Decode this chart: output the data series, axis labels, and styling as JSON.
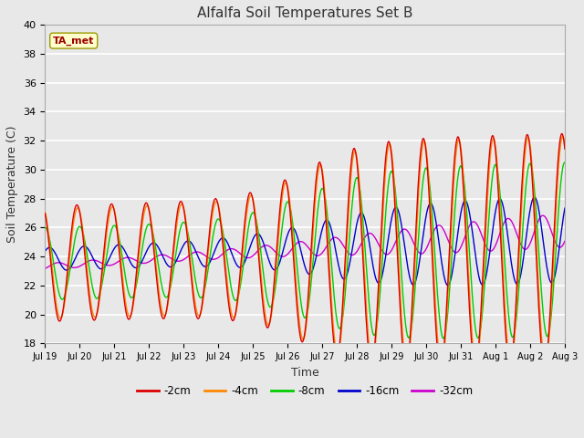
{
  "title": "Alfalfa Soil Temperatures Set B",
  "xlabel": "Time",
  "ylabel": "Soil Temperature (C)",
  "ylim": [
    18,
    40
  ],
  "yticks": [
    18,
    20,
    22,
    24,
    26,
    28,
    30,
    32,
    34,
    36,
    38,
    40
  ],
  "bg_color": "#e8e8e8",
  "plot_bg_color": "#e8e8e8",
  "grid_color": "#ffffff",
  "annotation_text": "TA_met",
  "annotation_bg": "#ffffcc",
  "annotation_fg": "#990000",
  "line_colors": {
    "-2cm": "#dd0000",
    "-4cm": "#ff8800",
    "-8cm": "#00cc00",
    "-16cm": "#0000cc",
    "-32cm": "#cc00cc"
  },
  "legend_order": [
    "-2cm",
    "-4cm",
    "-8cm",
    "-16cm",
    "-32cm"
  ],
  "n_days": 15,
  "start_day": 19,
  "start_month": "Jul",
  "tick_labels": [
    "Jul 19",
    "Jul 20",
    "Jul 21",
    "Jul 22",
    "Jul 23",
    "Jul 24",
    "Jul 25",
    "Jul 26",
    "Jul 27",
    "Jul 28",
    "Jul 29",
    "Jul 30",
    "Jul 31",
    "Aug 1",
    "Aug 2",
    "Aug 3"
  ],
  "figsize": [
    6.4,
    4.8
  ],
  "dpi": 100
}
